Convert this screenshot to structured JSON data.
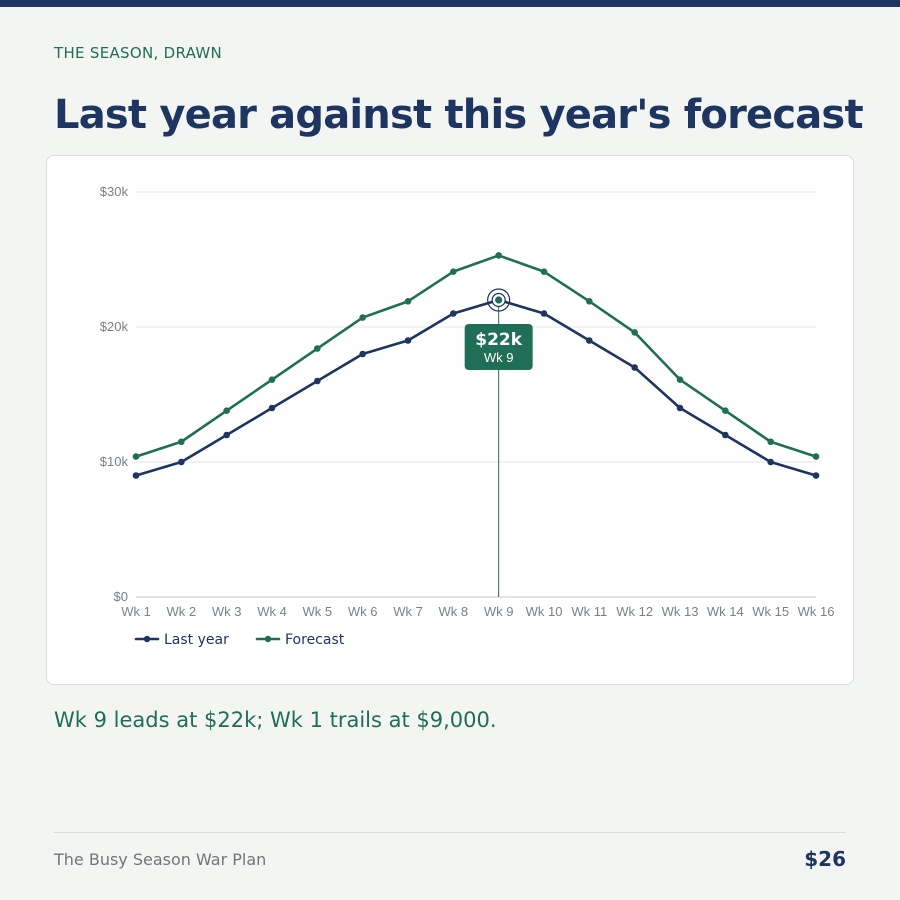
{
  "page": {
    "eyebrow": "THE SEASON, DRAWN",
    "title": "Last year against this year's forecast",
    "summary": "Wk 9 leads at $22k; Wk 1 trails at $9,000.",
    "footer_left": "The Busy Season War Plan",
    "footer_right": "$26"
  },
  "colors": {
    "navy": "#1e3461",
    "green": "#1f6e55",
    "grid": "#e3e6e3",
    "tick_text": "#7a8087"
  },
  "chart_data": {
    "type": "line",
    "title": "",
    "xlabel": "",
    "ylabel": "",
    "x": [
      "Wk 1",
      "Wk 2",
      "Wk 3",
      "Wk 4",
      "Wk 5",
      "Wk 6",
      "Wk 7",
      "Wk 8",
      "Wk 9",
      "Wk 10",
      "Wk 11",
      "Wk 12",
      "Wk 13",
      "Wk 14",
      "Wk 15",
      "Wk 16"
    ],
    "ylim": [
      0,
      30000
    ],
    "yticks": [
      0,
      10000,
      20000,
      30000
    ],
    "ytick_labels": [
      "$0",
      "$10k",
      "$20k",
      "$30k"
    ],
    "grid": true,
    "legend_position": "bottom-left",
    "series": [
      {
        "name": "Last year",
        "color": "#1e3461",
        "values": [
          9000,
          10000,
          12000,
          14000,
          16000,
          18000,
          19000,
          21000,
          22000,
          21000,
          19000,
          17000,
          14000,
          12000,
          10000,
          9000
        ]
      },
      {
        "name": "Forecast",
        "color": "#1f6e55",
        "values": [
          10400,
          11500,
          13800,
          16100,
          18400,
          20700,
          21900,
          24100,
          25300,
          24100,
          21900,
          19600,
          16100,
          13800,
          11500,
          10400
        ]
      }
    ],
    "highlight": {
      "index": 8,
      "series": 0,
      "value_label": "$22k",
      "category_label": "Wk 9"
    }
  }
}
